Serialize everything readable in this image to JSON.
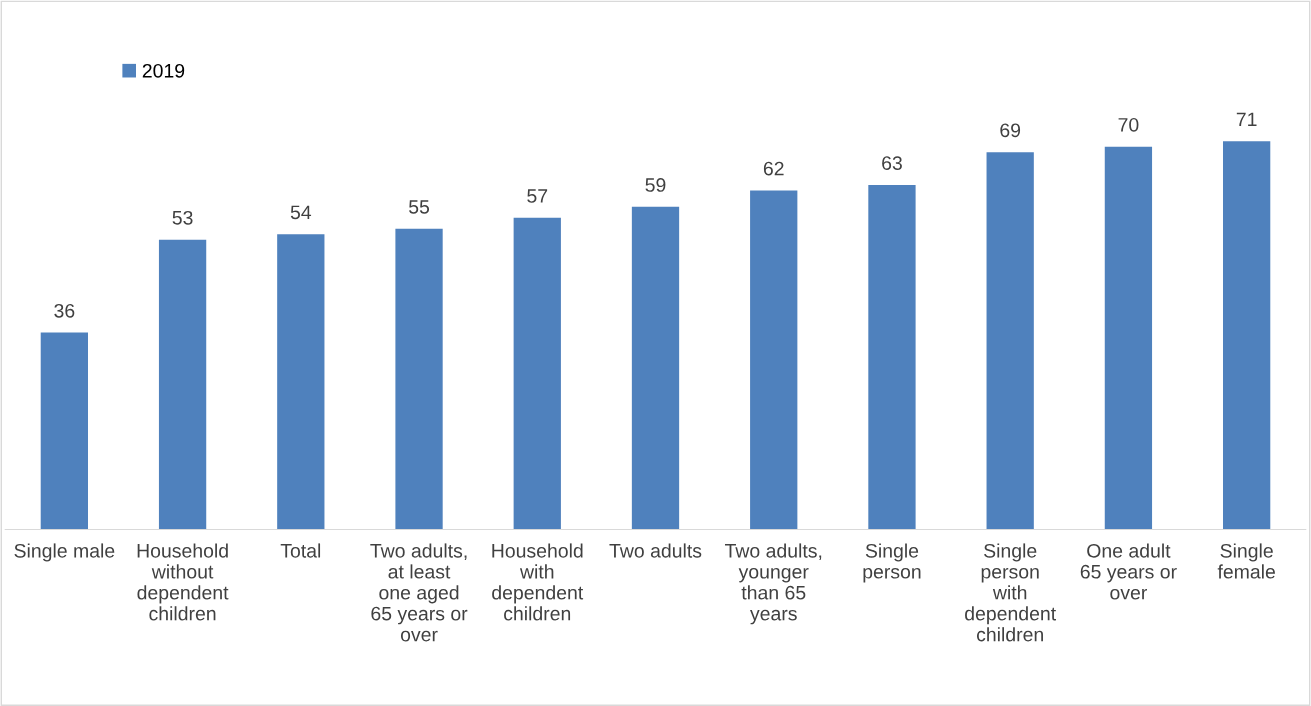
{
  "chart_data": {
    "type": "bar",
    "categories": [
      "Single male",
      "Household\nwithout\ndependent\nchildren",
      "Total",
      "Two adults,\nat least\none aged\n65 years or\nover",
      "Household\nwith\ndependent\nchildren",
      "Two adults",
      "Two adults,\nyounger\nthan 65\nyears",
      "Single\nperson",
      "Single\nperson\nwith\ndependent\nchildren",
      "One adult\n65 years or\nover",
      "Single\nfemale"
    ],
    "series": [
      {
        "name": "2019",
        "color": "#4f81bd",
        "values": [
          36,
          53,
          54,
          55,
          57,
          59,
          62,
          63,
          69,
          70,
          71
        ]
      }
    ],
    "data_labels": true,
    "legend": "top left",
    "grid": false
  }
}
